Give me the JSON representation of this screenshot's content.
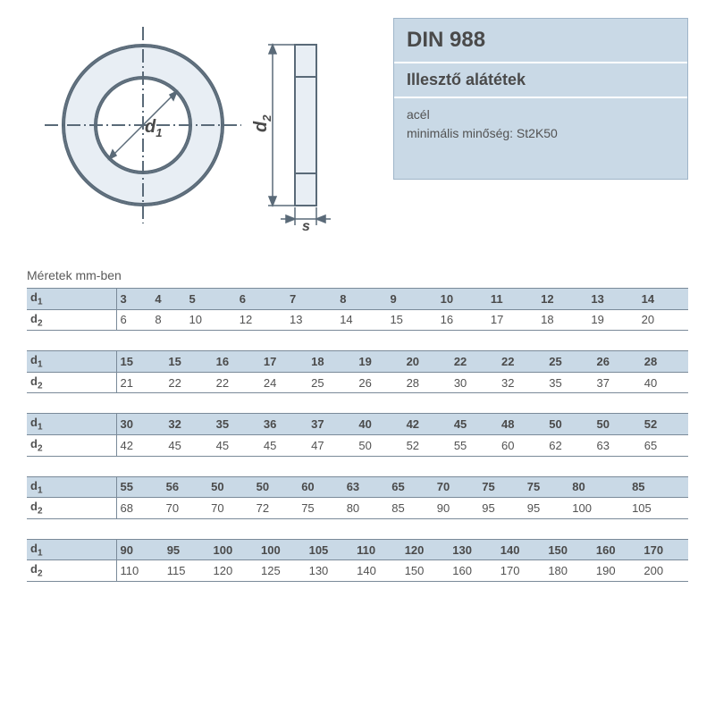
{
  "standard": "DIN 988",
  "product_name": "Illesztő alátétek",
  "material_label": "acél",
  "material_spec": "minimális minőség: St2K50",
  "dimensions_label": "Méretek mm-ben",
  "diagram": {
    "labels": {
      "d1": "d",
      "d1_sub": "1",
      "d2": "d",
      "d2_sub": "2",
      "s": "s"
    },
    "stroke": "#5a6a78",
    "fill_light": "#e8eef4",
    "fill_shadow": "#b8c4d0"
  },
  "colors": {
    "header_bg": "#c9d9e6",
    "border": "#7a8a99",
    "text": "#525252"
  },
  "row_label_d1": "d₁",
  "row_label_d2": "d₂",
  "blocks": [
    {
      "d1": [
        "3",
        "4",
        "5",
        "6",
        "7",
        "8",
        "9",
        "10",
        "11",
        "12",
        "13",
        "14"
      ],
      "d2": [
        "6",
        "8",
        "10",
        "12",
        "13",
        "14",
        "15",
        "16",
        "17",
        "18",
        "19",
        "20"
      ]
    },
    {
      "d1": [
        "15",
        "15",
        "16",
        "17",
        "18",
        "19",
        "20",
        "22",
        "22",
        "25",
        "26",
        "28"
      ],
      "d2": [
        "21",
        "22",
        "22",
        "24",
        "25",
        "26",
        "28",
        "30",
        "32",
        "35",
        "37",
        "40"
      ]
    },
    {
      "d1": [
        "30",
        "32",
        "35",
        "36",
        "37",
        "40",
        "42",
        "45",
        "48",
        "50",
        "50",
        "52"
      ],
      "d2": [
        "42",
        "45",
        "45",
        "45",
        "47",
        "50",
        "52",
        "55",
        "60",
        "62",
        "63",
        "65"
      ]
    },
    {
      "d1": [
        "55",
        "56",
        "50",
        "50",
        "60",
        "63",
        "65",
        "70",
        "75",
        "75",
        "80",
        "85"
      ],
      "d2": [
        "68",
        "70",
        "70",
        "72",
        "75",
        "80",
        "85",
        "90",
        "95",
        "95",
        "100",
        "105"
      ]
    },
    {
      "d1": [
        "90",
        "95",
        "100",
        "100",
        "105",
        "110",
        "120",
        "130",
        "140",
        "150",
        "160",
        "170"
      ],
      "d2": [
        "110",
        "115",
        "120",
        "125",
        "130",
        "140",
        "150",
        "160",
        "170",
        "180",
        "190",
        "200"
      ]
    }
  ]
}
